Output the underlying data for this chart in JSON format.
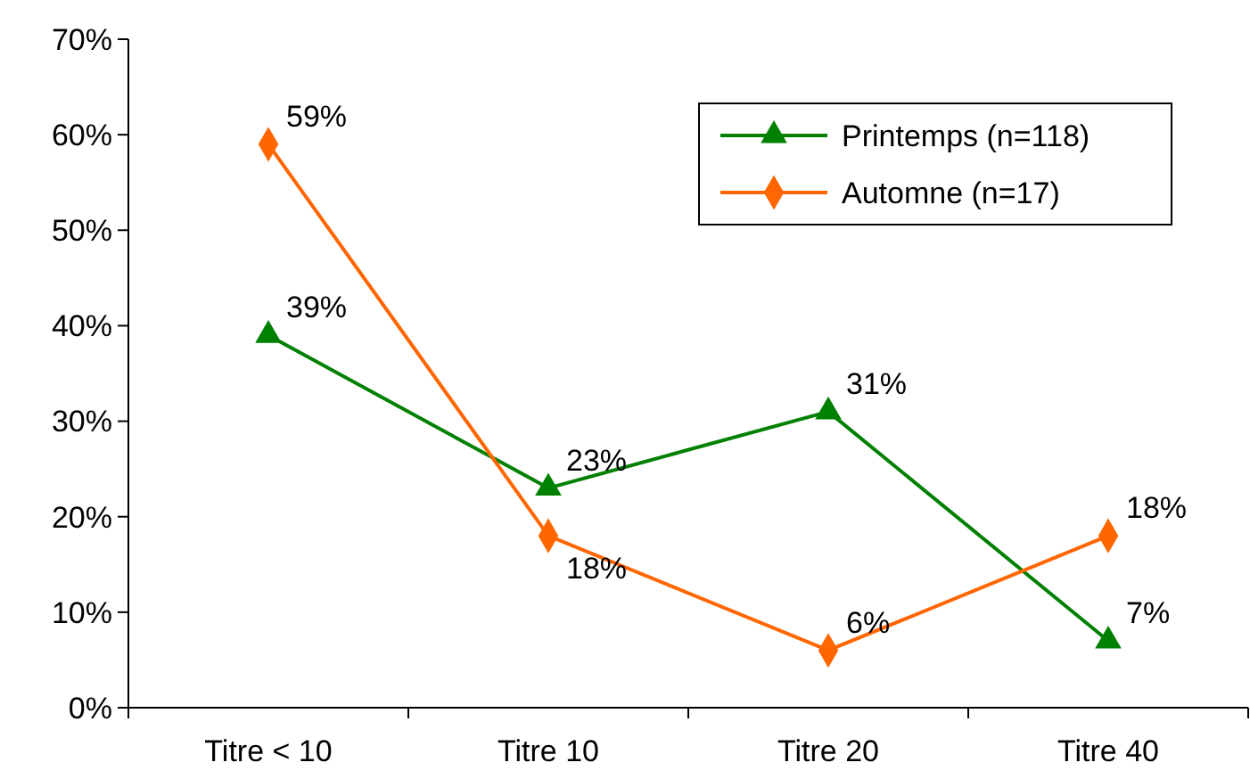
{
  "chart_data": {
    "type": "line",
    "categories": [
      "Titre < 10",
      "Titre 10",
      "Titre 20",
      "Titre 40"
    ],
    "series": [
      {
        "name": "Printemps (n=118)",
        "color": "#008000",
        "marker": "triangle",
        "values": [
          39,
          23,
          31,
          7
        ],
        "value_labels": [
          "39%",
          "23%",
          "31%",
          "7%"
        ]
      },
      {
        "name": "Automne (n=17)",
        "color": "#ff6600",
        "marker": "diamond",
        "values": [
          59,
          18,
          6,
          18
        ],
        "value_labels": [
          "59%",
          "18%",
          "6%",
          "18%"
        ]
      }
    ],
    "ylim": [
      0,
      70
    ],
    "yticks": [
      {
        "value": 0,
        "label": "0%"
      },
      {
        "value": 10,
        "label": "10%"
      },
      {
        "value": 20,
        "label": "20%"
      },
      {
        "value": 30,
        "label": "30%"
      },
      {
        "value": 40,
        "label": "40%"
      },
      {
        "value": 50,
        "label": "50%"
      },
      {
        "value": 60,
        "label": "60%"
      },
      {
        "value": 70,
        "label": "70%"
      }
    ],
    "legend": "top right",
    "grid": false,
    "line_style": "solid"
  }
}
